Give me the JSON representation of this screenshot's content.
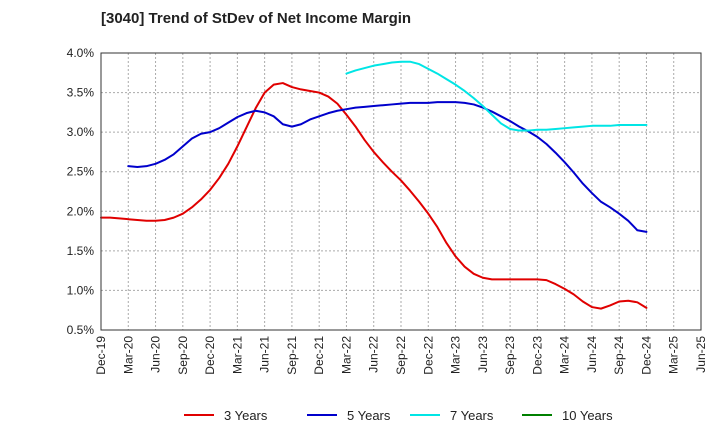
{
  "chart_data": {
    "type": "line",
    "title": "[3040]  Trend of StDev of Net Income Margin",
    "xlabel": "",
    "ylabel": "",
    "ylim": [
      0.5,
      4.0
    ],
    "x_tick_labels": [
      "Dec-19",
      "Mar-20",
      "Jun-20",
      "Sep-20",
      "Dec-20",
      "Mar-21",
      "Jun-21",
      "Sep-21",
      "Dec-21",
      "Mar-22",
      "Jun-22",
      "Sep-22",
      "Dec-22",
      "Mar-23",
      "Jun-23",
      "Sep-23",
      "Dec-23",
      "Mar-24",
      "Jun-24",
      "Sep-24",
      "Dec-24",
      "Mar-25",
      "Jun-25"
    ],
    "y_tick_labels": [
      "0.5%",
      "1.0%",
      "1.5%",
      "2.0%",
      "2.5%",
      "3.0%",
      "3.5%",
      "4.0%"
    ],
    "y_ticks": [
      0.5,
      1.0,
      1.5,
      2.0,
      2.5,
      3.0,
      3.5,
      4.0
    ],
    "grid": true,
    "legend_position": "bottom",
    "series": [
      {
        "name": "3 Years",
        "color": "#e00000",
        "x": [
          "Dec-19",
          "Jan-20",
          "Feb-20",
          "Mar-20",
          "Apr-20",
          "May-20",
          "Jun-20",
          "Jul-20",
          "Aug-20",
          "Sep-20",
          "Oct-20",
          "Nov-20",
          "Dec-20",
          "Jan-21",
          "Feb-21",
          "Mar-21",
          "Apr-21",
          "May-21",
          "Jun-21",
          "Jul-21",
          "Aug-21",
          "Sep-21",
          "Oct-21",
          "Nov-21",
          "Dec-21",
          "Jan-22",
          "Feb-22",
          "Mar-22",
          "Apr-22",
          "May-22",
          "Jun-22",
          "Jul-22",
          "Aug-22",
          "Sep-22",
          "Oct-22",
          "Nov-22",
          "Dec-22",
          "Jan-23",
          "Feb-23",
          "Mar-23",
          "Apr-23",
          "May-23",
          "Jun-23",
          "Jul-23",
          "Aug-23",
          "Sep-23",
          "Oct-23",
          "Nov-23",
          "Dec-23",
          "Jan-24",
          "Feb-24",
          "Mar-24",
          "Apr-24",
          "May-24",
          "Jun-24",
          "Jul-24",
          "Aug-24",
          "Sep-24",
          "Oct-24",
          "Nov-24",
          "Dec-24"
        ],
        "values": [
          1.92,
          1.92,
          1.91,
          1.9,
          1.89,
          1.88,
          1.88,
          1.89,
          1.92,
          1.97,
          2.05,
          2.15,
          2.27,
          2.42,
          2.6,
          2.82,
          3.06,
          3.3,
          3.5,
          3.6,
          3.62,
          3.57,
          3.54,
          3.52,
          3.5,
          3.45,
          3.36,
          3.22,
          3.07,
          2.9,
          2.75,
          2.62,
          2.5,
          2.39,
          2.26,
          2.12,
          1.97,
          1.8,
          1.6,
          1.43,
          1.3,
          1.21,
          1.16,
          1.14,
          1.14,
          1.14,
          1.14,
          1.14,
          1.14,
          1.13,
          1.08,
          1.02,
          0.95,
          0.86,
          0.79,
          0.77,
          0.81,
          0.86,
          0.87,
          0.85,
          0.78
        ]
      },
      {
        "name": "5 Years",
        "color": "#0000cc",
        "x": [
          "Dec-19",
          "Jan-20",
          "Feb-20",
          "Mar-20",
          "Apr-20",
          "May-20",
          "Jun-20",
          "Jul-20",
          "Aug-20",
          "Sep-20",
          "Oct-20",
          "Nov-20",
          "Dec-20",
          "Jan-21",
          "Feb-21",
          "Mar-21",
          "Apr-21",
          "May-21",
          "Jun-21",
          "Jul-21",
          "Aug-21",
          "Sep-21",
          "Oct-21",
          "Nov-21",
          "Dec-21",
          "Jan-22",
          "Feb-22",
          "Mar-22",
          "Apr-22",
          "May-22",
          "Jun-22",
          "Jul-22",
          "Aug-22",
          "Sep-22",
          "Oct-22",
          "Nov-22",
          "Dec-22",
          "Jan-23",
          "Feb-23",
          "Mar-23",
          "Apr-23",
          "May-23",
          "Jun-23",
          "Jul-23",
          "Aug-23",
          "Sep-23",
          "Oct-23",
          "Nov-23",
          "Dec-23",
          "Jan-24",
          "Feb-24",
          "Mar-24",
          "Apr-24",
          "May-24",
          "Jun-24",
          "Jul-24",
          "Aug-24",
          "Sep-24",
          "Oct-24",
          "Nov-24",
          "Dec-24"
        ],
        "values": [
          null,
          null,
          null,
          2.57,
          2.56,
          2.57,
          2.6,
          2.65,
          2.72,
          2.82,
          2.92,
          2.98,
          3.0,
          3.05,
          3.12,
          3.19,
          3.24,
          3.27,
          3.25,
          3.2,
          3.1,
          3.07,
          3.1,
          3.16,
          3.2,
          3.24,
          3.27,
          3.29,
          3.31,
          3.32,
          3.33,
          3.34,
          3.35,
          3.36,
          3.37,
          3.37,
          3.37,
          3.38,
          3.38,
          3.38,
          3.37,
          3.35,
          3.31,
          3.26,
          3.2,
          3.14,
          3.07,
          3.01,
          2.94,
          2.85,
          2.74,
          2.62,
          2.49,
          2.35,
          2.23,
          2.12,
          2.05,
          1.97,
          1.88,
          1.76,
          1.74
        ]
      },
      {
        "name": "7 Years",
        "color": "#00e5e5",
        "x": [
          "Mar-22",
          "Apr-22",
          "May-22",
          "Jun-22",
          "Jul-22",
          "Aug-22",
          "Sep-22",
          "Oct-22",
          "Nov-22",
          "Dec-22",
          "Jan-23",
          "Feb-23",
          "Mar-23",
          "Apr-23",
          "May-23",
          "Jun-23",
          "Jul-23",
          "Aug-23",
          "Sep-23",
          "Oct-23",
          "Nov-23",
          "Dec-23",
          "Jan-24",
          "Feb-24",
          "Mar-24",
          "Apr-24",
          "May-24",
          "Jun-24",
          "Jul-24",
          "Aug-24",
          "Sep-24",
          "Oct-24",
          "Nov-24",
          "Dec-24"
        ],
        "values": [
          3.74,
          3.78,
          3.81,
          3.84,
          3.86,
          3.88,
          3.89,
          3.89,
          3.86,
          3.8,
          3.74,
          3.67,
          3.6,
          3.52,
          3.43,
          3.33,
          3.22,
          3.11,
          3.04,
          3.02,
          3.02,
          3.03,
          3.03,
          3.04,
          3.05,
          3.06,
          3.07,
          3.08,
          3.08,
          3.08,
          3.09,
          3.09,
          3.09,
          3.09
        ]
      },
      {
        "name": "10 Years",
        "color": "#008000",
        "x": [],
        "values": []
      }
    ]
  }
}
